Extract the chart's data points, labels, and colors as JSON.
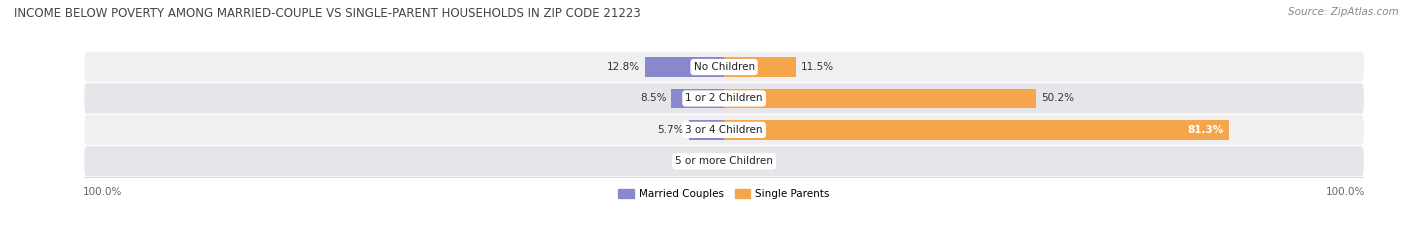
{
  "title": "INCOME BELOW POVERTY AMONG MARRIED-COUPLE VS SINGLE-PARENT HOUSEHOLDS IN ZIP CODE 21223",
  "source": "Source: ZipAtlas.com",
  "categories": [
    "No Children",
    "1 or 2 Children",
    "3 or 4 Children",
    "5 or more Children"
  ],
  "married_values": [
    12.8,
    8.5,
    5.7,
    0.0
  ],
  "single_values": [
    11.5,
    50.2,
    81.3,
    0.0
  ],
  "married_color": "#8888cc",
  "single_color": "#f5a54a",
  "married_color_light": "#bbbbdd",
  "single_color_light": "#f8cfa0",
  "row_bg_color_light": "#f0f0f2",
  "row_bg_color_dark": "#e6e6ea",
  "title_fontsize": 8.5,
  "source_fontsize": 7.5,
  "label_fontsize": 7.5,
  "category_fontsize": 7.5,
  "legend_fontsize": 7.5,
  "axis_label_fontsize": 7.5,
  "max_val": 100.0,
  "figsize": [
    14.06,
    2.33
  ]
}
